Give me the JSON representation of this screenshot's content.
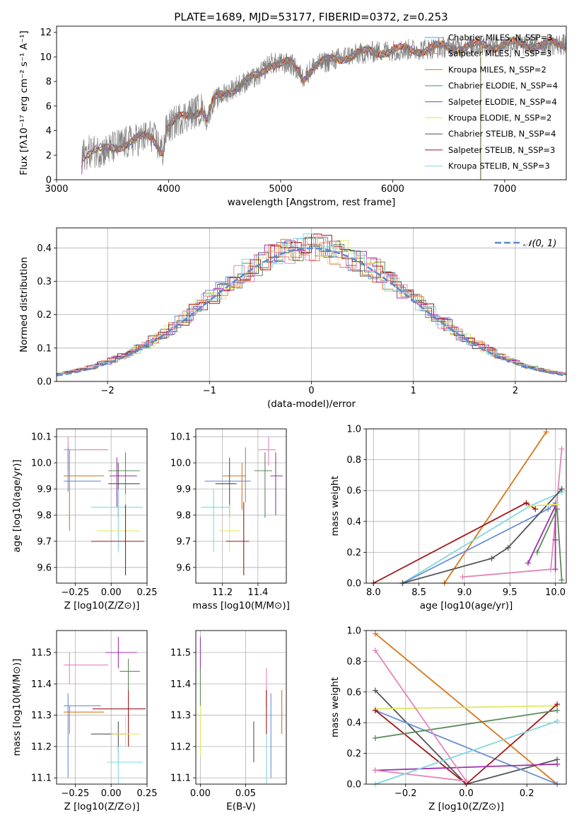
{
  "title": "PLATE=1689, MJD=53177, FIBERID=0372, z=0.253",
  "colors": {
    "Chabrier MILES": "#6a8fd8",
    "Salpeter MILES": "#e57d63",
    "Kroupa MILES": "#d8761c",
    "Chabrier ELODIE": "#5a8a5a",
    "Salpeter ELODIE": "#a030b0",
    "Kroupa ELODIE": "#e0e860",
    "Chabrier STELIB": "#555555",
    "Salpeter STELIB": "#a01818",
    "Kroupa STELIB": "#80d8e0",
    "pink": "#e486b8",
    "data": "#808080"
  },
  "chart_data": [
    {
      "id": "spectrum",
      "type": "line",
      "xlabel": "wavelength [Angstrom, rest frame]",
      "ylabel": "Flux [fλ10⁻¹⁷ erg cm⁻² s⁻¹ A⁻¹]",
      "xlim": [
        3000,
        7550
      ],
      "ylim": [
        0,
        12.5
      ],
      "xticks": [
        "3000",
        "4000",
        "5000",
        "6000",
        "7000"
      ],
      "yticks": [
        "0",
        "2",
        "4",
        "6",
        "8",
        "10",
        "12"
      ],
      "legend": [
        "Chabrier MILES, N_SSP=3",
        "Salpeter MILES, N_SSP=3",
        "Kroupa MILES, N_SSP=2",
        "Chabrier ELODIE, N_SSP=4",
        "Salpeter ELODIE, N_SSP=4",
        "Kroupa ELODIE, N_SSP=2",
        "Chabrier STELIB, N_SSP=4",
        "Salpeter STELIB, N_SSP=3",
        "Kroupa STELIB, N_SSP=3"
      ],
      "continuum": [
        [
          3220,
          0
        ],
        [
          3230,
          2.0
        ],
        [
          3300,
          2.3
        ],
        [
          3450,
          2.4
        ],
        [
          3550,
          2.8
        ],
        [
          3700,
          3.2
        ],
        [
          3850,
          3.6
        ],
        [
          3950,
          2.3
        ],
        [
          3980,
          4.1
        ],
        [
          4100,
          5.0
        ],
        [
          4300,
          5.8
        ],
        [
          4340,
          4.8
        ],
        [
          4400,
          6.4
        ],
        [
          4600,
          7.6
        ],
        [
          4800,
          8.4
        ],
        [
          4900,
          9.5
        ],
        [
          5100,
          9.4
        ],
        [
          5200,
          8.3
        ],
        [
          5300,
          9.3
        ],
        [
          5600,
          10.1
        ],
        [
          5900,
          10.5
        ],
        [
          6200,
          10.6
        ],
        [
          6500,
          10.8
        ],
        [
          6800,
          10.9
        ],
        [
          7000,
          11.0
        ],
        [
          7300,
          11.0
        ],
        [
          7550,
          11.0
        ]
      ]
    },
    {
      "id": "residuals",
      "type": "histogram",
      "xlabel": "(data-model)/error",
      "ylabel": "Normed distribution",
      "xlim": [
        -2.5,
        2.5
      ],
      "ylim": [
        0,
        0.46
      ],
      "xticks": [
        "−2",
        "−1",
        "0",
        "1",
        "2"
      ],
      "yticks": [
        "0.0",
        "0.1",
        "0.2",
        "0.3",
        "0.4"
      ],
      "legend": [
        "N(0,1)"
      ]
    },
    {
      "id": "age-vs-Z",
      "type": "scatter",
      "xlabel": "Z [log10(Z/Z⊙)]",
      "ylabel": "age [log10(age/yr)]",
      "xlim": [
        -0.38,
        0.25
      ],
      "ylim": [
        9.54,
        10.13
      ],
      "xticks": [
        "−0.25",
        "0.00",
        "0.25"
      ],
      "yticks": [
        "9.6",
        "9.7",
        "9.8",
        "9.9",
        "10.0",
        "10.1"
      ],
      "points": [
        {
          "c": "pink",
          "x": -0.3,
          "y": 10.05,
          "xe": [
            -0.33,
            -0.02
          ],
          "ye": [
            9.97,
            10.1
          ]
        },
        {
          "c": "Kroupa MILES",
          "x": -0.29,
          "y": 9.95,
          "xe": [
            -0.33,
            -0.05
          ],
          "ye": [
            9.74,
            10.05
          ]
        },
        {
          "c": "Chabrier MILES",
          "x": -0.3,
          "y": 9.93,
          "xe": [
            -0.33,
            -0.07
          ],
          "ye": [
            9.89,
            10.06
          ]
        },
        {
          "c": "Chabrier ELODIE",
          "x": 0.1,
          "y": 9.97,
          "xe": [
            -0.02,
            0.2
          ],
          "ye": [
            9.87,
            10.04
          ]
        },
        {
          "c": "Salpeter ELODIE",
          "x": 0.04,
          "y": 9.95,
          "xe": [
            -0.01,
            0.18
          ],
          "ye": [
            9.83,
            10.02
          ]
        },
        {
          "c": "Chabrier STELIB",
          "x": 0.05,
          "y": 9.92,
          "xe": [
            -0.02,
            0.2
          ],
          "ye": [
            9.79,
            10.0
          ]
        },
        {
          "c": "Kroupa STELIB",
          "x": 0.05,
          "y": 9.83,
          "xe": [
            -0.14,
            0.22
          ],
          "ye": [
            9.66,
            9.9
          ]
        },
        {
          "c": "Kroupa ELODIE",
          "x": 0.1,
          "y": 9.74,
          "xe": [
            -0.1,
            0.2
          ],
          "ye": [
            9.7,
            9.88
          ]
        },
        {
          "c": "Salpeter STELIB",
          "x": 0.1,
          "y": 9.7,
          "xe": [
            -0.14,
            0.23
          ],
          "ye": [
            9.57,
            9.84
          ]
        }
      ]
    },
    {
      "id": "age-vs-mass",
      "type": "scatter",
      "xlabel": "mass [log10(M/M⊙)]",
      "xlim": [
        11.05,
        11.56
      ],
      "ylim": [
        9.54,
        10.13
      ],
      "xticks": [
        "11.2",
        "11.4"
      ],
      "yticks": [
        "9.6",
        "9.7",
        "9.8",
        "9.9",
        "10.0",
        "10.1"
      ],
      "points": [
        {
          "c": "pink",
          "x": 11.46,
          "y": 10.05,
          "xe": [
            11.4,
            11.5
          ],
          "ye": [
            9.99,
            10.1
          ]
        },
        {
          "c": "Chabrier MILES",
          "x": 11.33,
          "y": 9.93,
          "xe": [
            11.1,
            11.36
          ],
          "ye": [
            9.85,
            10.06
          ]
        },
        {
          "c": "Kroupa MILES",
          "x": 11.31,
          "y": 9.95,
          "xe": [
            11.2,
            11.33
          ],
          "ye": [
            9.82,
            10.0
          ]
        },
        {
          "c": "Chabrier ELODIE",
          "x": 11.44,
          "y": 9.97,
          "xe": [
            11.38,
            11.48
          ],
          "ye": [
            9.79,
            10.04
          ]
        },
        {
          "c": "Salpeter ELODIE",
          "x": 11.5,
          "y": 9.95,
          "xe": [
            11.47,
            11.54
          ],
          "ye": [
            9.8,
            10.04
          ]
        },
        {
          "c": "Chabrier STELIB",
          "x": 11.24,
          "y": 9.92,
          "xe": [
            11.16,
            11.28
          ],
          "ye": [
            9.79,
            10.02
          ]
        },
        {
          "c": "Kroupa STELIB",
          "x": 11.15,
          "y": 9.83,
          "xe": [
            11.08,
            11.24
          ],
          "ye": [
            9.66,
            9.9
          ]
        },
        {
          "c": "Kroupa ELODIE",
          "x": 11.24,
          "y": 9.74,
          "xe": [
            11.18,
            11.3
          ],
          "ye": [
            9.66,
            9.84
          ]
        },
        {
          "c": "Salpeter STELIB",
          "x": 11.32,
          "y": 9.7,
          "xe": [
            11.22,
            11.35
          ],
          "ye": [
            9.57,
            9.85
          ]
        }
      ]
    },
    {
      "id": "mass-weight-vs-age",
      "type": "line",
      "xlabel": "age [log10(age/yr)]",
      "ylabel": "mass weight",
      "xlim": [
        7.92,
        10.12
      ],
      "ylim": [
        0,
        1
      ],
      "xticks": [
        "8.0",
        "8.5",
        "9.0",
        "9.5",
        "10.0"
      ],
      "yticks": [
        "0.0",
        "0.2",
        "0.4",
        "0.6",
        "0.8",
        "1.0"
      ],
      "series": [
        {
          "c": "Kroupa MILES",
          "points": [
            [
              8.78,
              0.0
            ],
            [
              9.9,
              0.98
            ]
          ]
        },
        {
          "c": "pink",
          "points": [
            [
              8.98,
              0.04
            ],
            [
              9.95,
              0.09
            ],
            [
              10.07,
              0.87
            ]
          ]
        },
        {
          "c": "Salpeter STELIB",
          "points": [
            [
              8.0,
              0.0
            ],
            [
              9.68,
              0.52
            ],
            [
              9.78,
              0.48
            ]
          ]
        },
        {
          "c": "Kroupa STELIB",
          "points": [
            [
              8.32,
              0.0
            ],
            [
              9.72,
              0.5
            ],
            [
              10.07,
              0.59
            ]
          ]
        },
        {
          "c": "Chabrier MILES",
          "points": [
            [
              8.32,
              0.0
            ],
            [
              9.92,
              0.48
            ],
            [
              10.0,
              0.52
            ]
          ]
        },
        {
          "c": "Chabrier STELIB",
          "points": [
            [
              8.32,
              0.0
            ],
            [
              9.3,
              0.16
            ],
            [
              9.48,
              0.23
            ],
            [
              10.07,
              0.61
            ]
          ]
        },
        {
          "c": "Salpeter ELODIE",
          "points": [
            [
              9.7,
              0.13
            ],
            [
              10.0,
              0.5
            ],
            [
              10.0,
              0.28
            ],
            [
              10.0,
              0.09
            ]
          ]
        },
        {
          "c": "Chabrier ELODIE",
          "points": [
            [
              9.8,
              0.2
            ],
            [
              10.02,
              0.48
            ],
            [
              10.07,
              0.02
            ]
          ]
        },
        {
          "c": "Kroupa ELODIE",
          "points": [
            [
              9.72,
              0.5
            ],
            [
              10.02,
              0.51
            ]
          ]
        }
      ]
    },
    {
      "id": "mass-vs-Z",
      "type": "scatter",
      "xlabel": "Z [log10(Z/Z⊙)]",
      "ylabel": "mass [log10(M/M⊙)]",
      "xlim": [
        -0.38,
        0.25
      ],
      "ylim": [
        11.08,
        11.57
      ],
      "xticks": [
        "−0.25",
        "0.00",
        "0.25"
      ],
      "yticks": [
        "11.1",
        "11.2",
        "11.3",
        "11.4",
        "11.5"
      ],
      "points": [
        {
          "c": "Salpeter ELODIE",
          "x": 0.05,
          "y": 11.5,
          "xe": [
            -0.04,
            0.18
          ],
          "ye": [
            11.45,
            11.55
          ]
        },
        {
          "c": "pink",
          "x": -0.29,
          "y": 11.46,
          "xe": [
            -0.33,
            -0.02
          ],
          "ye": [
            11.4,
            11.5
          ]
        },
        {
          "c": "Chabrier ELODIE",
          "x": 0.12,
          "y": 11.44,
          "xe": [
            0.06,
            0.2
          ],
          "ye": [
            11.38,
            11.48
          ]
        },
        {
          "c": "Chabrier MILES",
          "x": -0.3,
          "y": 11.33,
          "xe": [
            -0.33,
            -0.07
          ],
          "ye": [
            11.1,
            11.37
          ]
        },
        {
          "c": "Salpeter STELIB",
          "x": 0.12,
          "y": 11.32,
          "xe": [
            -0.13,
            0.24
          ],
          "ye": [
            11.2,
            11.38
          ]
        },
        {
          "c": "Kroupa MILES",
          "x": -0.29,
          "y": 11.31,
          "xe": [
            -0.33,
            -0.05
          ],
          "ye": [
            11.24,
            11.33
          ]
        },
        {
          "c": "Chabrier STELIB",
          "x": 0.05,
          "y": 11.24,
          "xe": [
            -0.14,
            0.1
          ],
          "ye": [
            11.18,
            11.28
          ]
        },
        {
          "c": "Kroupa ELODIE",
          "x": 0.1,
          "y": 11.24,
          "xe": [
            0.0,
            0.2
          ],
          "ye": [
            11.2,
            11.3
          ]
        },
        {
          "c": "Kroupa STELIB",
          "x": 0.05,
          "y": 11.15,
          "xe": [
            -0.03,
            0.22
          ],
          "ye": [
            11.08,
            11.2
          ]
        }
      ]
    },
    {
      "id": "mass-vs-EBV",
      "type": "scatter",
      "xlabel": "E(B-V)",
      "xlim": [
        -0.005,
        0.095
      ],
      "ylim": [
        11.08,
        11.57
      ],
      "xticks": [
        "0.00",
        "0.05"
      ],
      "yticks": [
        "11.1",
        "11.2",
        "11.3",
        "11.4",
        "11.5"
      ],
      "segments": [
        {
          "c": "Salpeter ELODIE",
          "x": 0.0,
          "ye": [
            11.45,
            11.55
          ]
        },
        {
          "c": "Chabrier ELODIE",
          "x": 0.0,
          "ye": [
            11.33,
            11.45
          ]
        },
        {
          "c": "Kroupa ELODIE",
          "x": 0.0,
          "ye": [
            11.17,
            11.33
          ]
        },
        {
          "c": "Chabrier STELIB",
          "x": 0.059,
          "ye": [
            11.15,
            11.28
          ]
        },
        {
          "c": "pink",
          "x": 0.073,
          "ye": [
            11.33,
            11.45
          ]
        },
        {
          "c": "Kroupa STELIB",
          "x": 0.073,
          "ye": [
            11.08,
            11.24
          ]
        },
        {
          "c": "Salpeter STELIB",
          "x": 0.073,
          "ye": [
            11.24,
            11.38
          ]
        },
        {
          "c": "Chabrier MILES",
          "x": 0.078,
          "ye": [
            11.1,
            11.37
          ]
        },
        {
          "c": "Kroupa MILES",
          "x": 0.09,
          "ye": [
            11.24,
            11.38
          ]
        }
      ]
    },
    {
      "id": "mass-weight-vs-Z",
      "type": "line",
      "xlabel": "Z [log10(Z/Z⊙)]",
      "ylabel": "mass weight",
      "xlim": [
        -0.33,
        0.33
      ],
      "ylim": [
        0,
        1
      ],
      "xticks": [
        "−0.2",
        "0.0",
        "0.2"
      ],
      "yticks": [
        "0.0",
        "0.2",
        "0.4",
        "0.6",
        "0.8",
        "1.0"
      ],
      "series": [
        {
          "c": "Kroupa MILES",
          "points": [
            [
              -0.3,
              0.98
            ],
            [
              0.3,
              0.0
            ]
          ]
        },
        {
          "c": "Chabrier STELIB",
          "points": [
            [
              -0.3,
              0.61
            ],
            [
              0.0,
              0.0
            ],
            [
              0.3,
              0.16
            ]
          ]
        },
        {
          "c": "Chabrier MILES",
          "points": [
            [
              -0.3,
              0.48
            ],
            [
              0.3,
              0.0
            ]
          ]
        },
        {
          "c": "Kroupa ELODIE",
          "points": [
            [
              -0.3,
              0.49
            ],
            [
              0.3,
              0.51
            ]
          ]
        },
        {
          "c": "Salpeter STELIB",
          "points": [
            [
              -0.3,
              0.48
            ],
            [
              0.0,
              0.0
            ],
            [
              0.3,
              0.52
            ]
          ]
        },
        {
          "c": "Chabrier ELODIE",
          "points": [
            [
              -0.3,
              0.3
            ],
            [
              0.3,
              0.48
            ]
          ]
        },
        {
          "c": "Salpeter ELODIE",
          "points": [
            [
              -0.3,
              0.09
            ],
            [
              0.3,
              0.13
            ]
          ]
        },
        {
          "c": "pink",
          "points": [
            [
              -0.3,
              0.09
            ],
            [
              0.0,
              0.02
            ],
            [
              -0.3,
              0.87
            ]
          ]
        },
        {
          "c": "Kroupa STELIB",
          "points": [
            [
              -0.3,
              0.0
            ],
            [
              0.3,
              0.41
            ]
          ]
        }
      ]
    }
  ]
}
